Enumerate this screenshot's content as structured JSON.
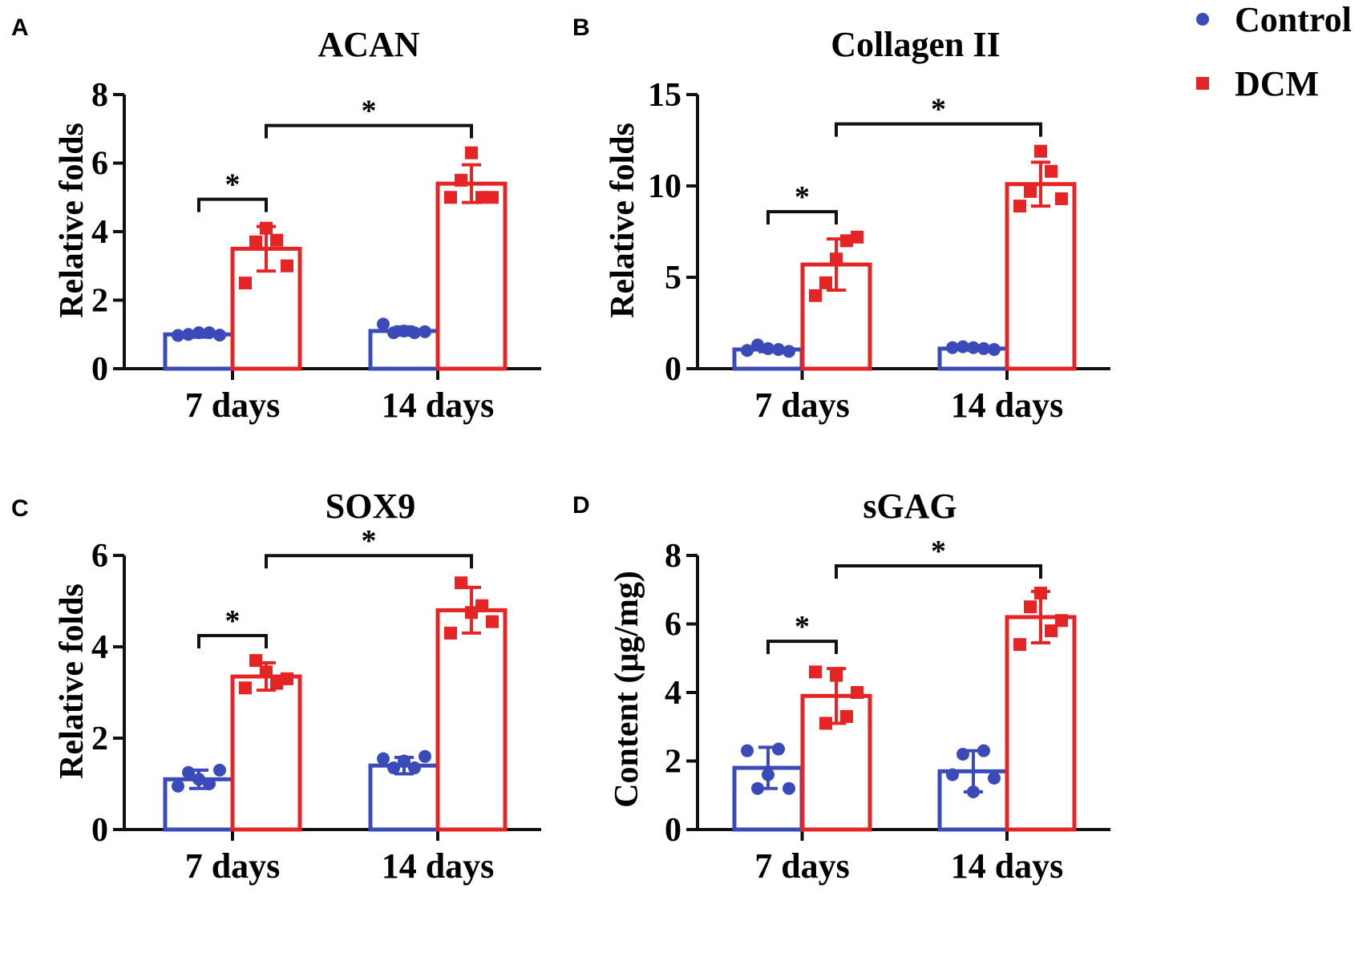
{
  "colors": {
    "control": "#3a4ab8",
    "dcm": "#e52525",
    "axis": "#111111"
  },
  "legend": {
    "items": [
      {
        "label": "Control",
        "marker": "circle",
        "color": "#3a4ab8"
      },
      {
        "label": "DCM",
        "marker": "square",
        "color": "#e52525"
      }
    ]
  },
  "chart_data": [
    {
      "type": "bar",
      "panel": "A",
      "title": "ACAN",
      "ylabel": "Relative folds",
      "xlabel": "",
      "ylim": [
        0,
        8
      ],
      "yticks": [
        0,
        2,
        4,
        6,
        8
      ],
      "categories": [
        "7 days",
        "14 days"
      ],
      "series": [
        {
          "name": "Control",
          "values": [
            1.0,
            1.1
          ],
          "sd": [
            0.08,
            0.12
          ],
          "points": [
            [
              0.97,
              1.0,
              1.05,
              1.05,
              0.98
            ],
            [
              1.3,
              1.05,
              1.1,
              1.05,
              1.08
            ]
          ]
        },
        {
          "name": "DCM",
          "values": [
            3.5,
            5.4
          ],
          "sd": [
            0.65,
            0.55
          ],
          "points": [
            [
              2.5,
              3.7,
              4.1,
              3.75,
              3.0
            ],
            [
              5.0,
              5.5,
              6.3,
              5.0,
              5.0
            ]
          ]
        }
      ],
      "significance": [
        {
          "label": "*",
          "from": [
            0,
            "Control"
          ],
          "to": [
            0,
            "DCM"
          ]
        },
        {
          "label": "*",
          "from": [
            0,
            "DCM"
          ],
          "to": [
            1,
            "DCM"
          ]
        }
      ]
    },
    {
      "type": "bar",
      "panel": "B",
      "title": "Collagen II",
      "ylabel": "Relative folds",
      "xlabel": "",
      "ylim": [
        0,
        15
      ],
      "yticks": [
        0,
        5,
        10,
        15
      ],
      "categories": [
        "7 days",
        "14 days"
      ],
      "series": [
        {
          "name": "Control",
          "values": [
            1.05,
            1.1
          ],
          "sd": [
            0.12,
            0.08
          ],
          "points": [
            [
              1.0,
              1.3,
              1.1,
              1.05,
              0.95
            ],
            [
              1.15,
              1.2,
              1.15,
              1.1,
              1.05
            ]
          ]
        },
        {
          "name": "DCM",
          "values": [
            5.7,
            10.1
          ],
          "sd": [
            1.4,
            1.2
          ],
          "points": [
            [
              4.0,
              4.7,
              6.0,
              7.0,
              7.2
            ],
            [
              8.9,
              9.7,
              11.9,
              10.8,
              9.3
            ]
          ]
        }
      ],
      "significance": [
        {
          "label": "*",
          "from": [
            0,
            "Control"
          ],
          "to": [
            0,
            "DCM"
          ]
        },
        {
          "label": "*",
          "from": [
            0,
            "DCM"
          ],
          "to": [
            1,
            "DCM"
          ]
        }
      ]
    },
    {
      "type": "bar",
      "panel": "C",
      "title": "SOX9",
      "ylabel": "Relative folds",
      "xlabel": "",
      "ylim": [
        0,
        6
      ],
      "yticks": [
        0,
        2,
        4,
        6
      ],
      "categories": [
        "7 days",
        "14 days"
      ],
      "series": [
        {
          "name": "Control",
          "values": [
            1.1,
            1.4
          ],
          "sd": [
            0.2,
            0.18
          ],
          "points": [
            [
              0.95,
              1.25,
              1.1,
              1.0,
              1.3
            ],
            [
              1.55,
              1.35,
              1.5,
              1.35,
              1.6
            ]
          ]
        },
        {
          "name": "DCM",
          "values": [
            3.35,
            4.8
          ],
          "sd": [
            0.3,
            0.5
          ],
          "points": [
            [
              3.1,
              3.7,
              3.45,
              3.2,
              3.3
            ],
            [
              4.3,
              5.4,
              4.75,
              4.9,
              4.55
            ]
          ]
        }
      ],
      "significance": [
        {
          "label": "*",
          "from": [
            0,
            "Control"
          ],
          "to": [
            0,
            "DCM"
          ]
        },
        {
          "label": "*",
          "from": [
            0,
            "DCM"
          ],
          "to": [
            1,
            "DCM"
          ]
        }
      ]
    },
    {
      "type": "bar",
      "panel": "D",
      "title": "sGAG",
      "ylabel": "Content (μg/mg)",
      "xlabel": "",
      "ylim": [
        0,
        8
      ],
      "yticks": [
        0,
        2,
        4,
        6,
        8
      ],
      "categories": [
        "7 days",
        "14 days"
      ],
      "series": [
        {
          "name": "Control",
          "values": [
            1.8,
            1.7
          ],
          "sd": [
            0.6,
            0.6
          ],
          "points": [
            [
              2.3,
              1.2,
              1.6,
              2.35,
              1.2
            ],
            [
              1.6,
              2.2,
              1.1,
              2.3,
              1.5
            ]
          ]
        },
        {
          "name": "DCM",
          "values": [
            3.9,
            6.2
          ],
          "sd": [
            0.8,
            0.75
          ],
          "points": [
            [
              4.6,
              3.1,
              4.5,
              3.3,
              4.0
            ],
            [
              5.4,
              6.5,
              6.9,
              5.8,
              6.1
            ]
          ]
        }
      ],
      "significance": [
        {
          "label": "*",
          "from": [
            0,
            "Control"
          ],
          "to": [
            0,
            "DCM"
          ]
        },
        {
          "label": "*",
          "from": [
            0,
            "DCM"
          ],
          "to": [
            1,
            "DCM"
          ]
        }
      ]
    }
  ]
}
